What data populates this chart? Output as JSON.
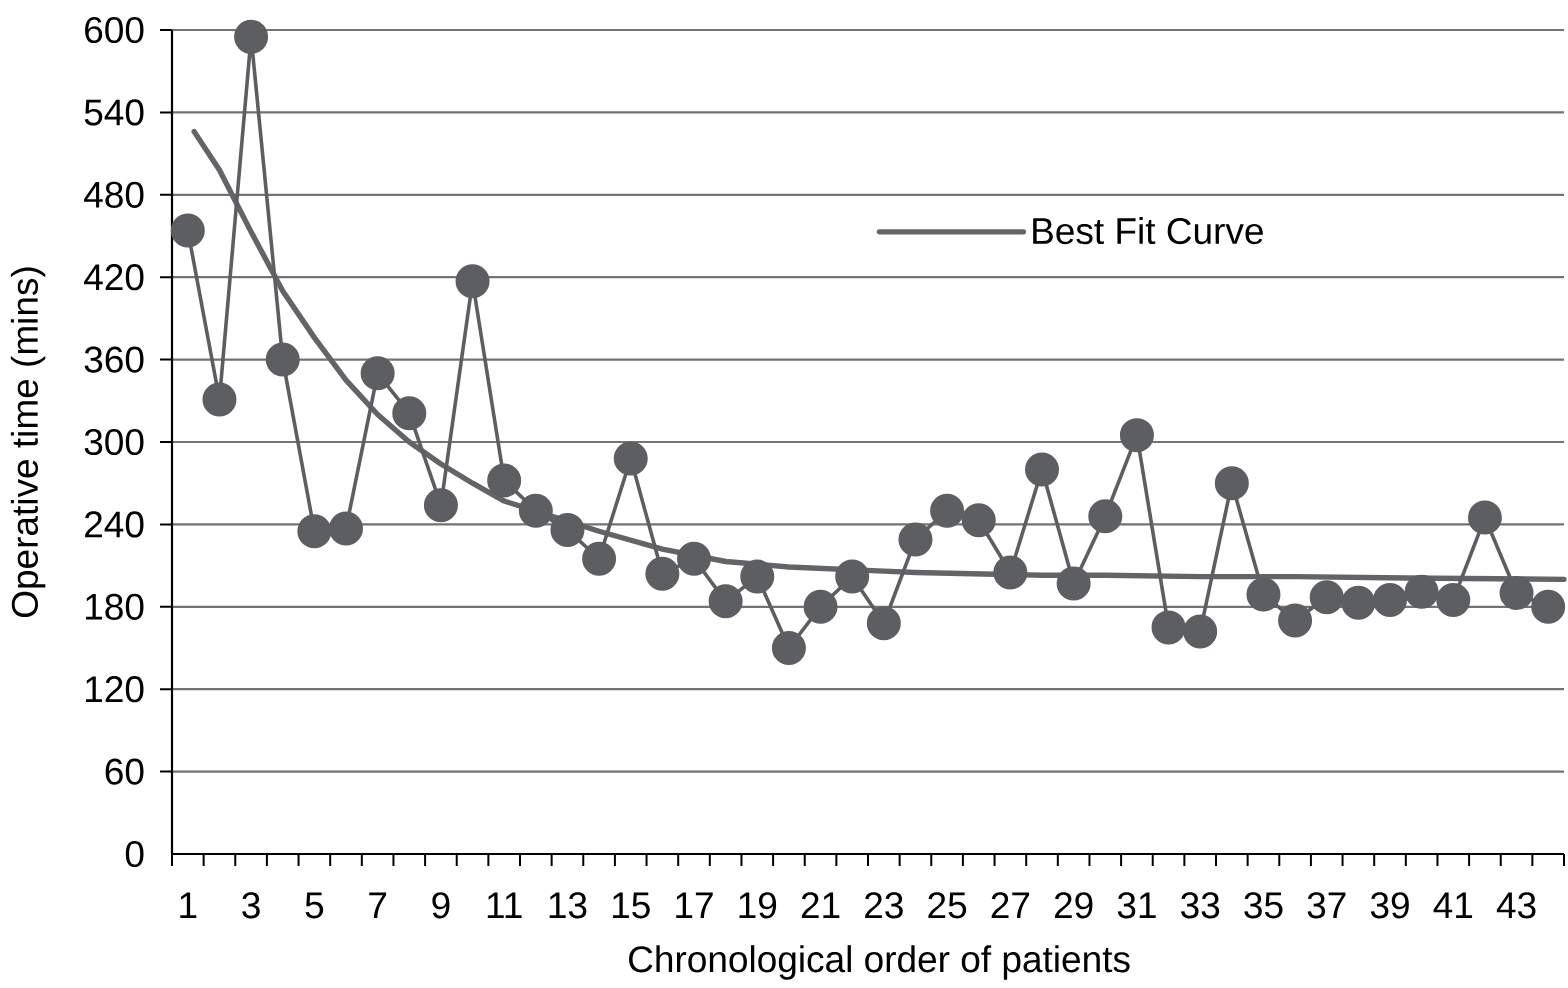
{
  "chart_data": {
    "type": "line",
    "xlabel": "Chronological order of patients",
    "ylabel": "Operative time (mins)",
    "x": [
      1,
      2,
      3,
      4,
      5,
      6,
      7,
      8,
      9,
      10,
      11,
      12,
      13,
      14,
      15,
      16,
      17,
      18,
      19,
      20,
      21,
      22,
      23,
      24,
      25,
      26,
      27,
      28,
      29,
      30,
      31,
      32,
      33,
      34,
      35,
      36,
      37,
      38,
      39,
      40,
      41,
      42,
      43,
      44
    ],
    "xlim": [
      0.5,
      44.5
    ],
    "xticks": [
      {
        "value": 0.5,
        "label": null
      },
      1,
      {
        "value": 1.5,
        "label": null
      },
      {
        "value": 2.5,
        "label": null
      },
      3,
      {
        "value": 3.5,
        "label": null
      },
      {
        "value": 4.5,
        "label": null
      },
      5,
      {
        "value": 5.5,
        "label": null
      },
      {
        "value": 6.5,
        "label": null
      },
      7,
      {
        "value": 7.5,
        "label": null
      },
      {
        "value": 8.5,
        "label": null
      },
      9,
      {
        "value": 9.5,
        "label": null
      },
      {
        "value": 10.5,
        "label": null
      },
      11,
      {
        "value": 11.5,
        "label": null
      },
      {
        "value": 12.5,
        "label": null
      },
      13,
      {
        "value": 13.5,
        "label": null
      },
      {
        "value": 14.5,
        "label": null
      },
      15,
      {
        "value": 15.5,
        "label": null
      },
      {
        "value": 16.5,
        "label": null
      },
      17,
      {
        "value": 17.5,
        "label": null
      },
      {
        "value": 18.5,
        "label": null
      },
      19,
      {
        "value": 19.5,
        "label": null
      },
      {
        "value": 20.5,
        "label": null
      },
      21,
      {
        "value": 21.5,
        "label": null
      },
      {
        "value": 22.5,
        "label": null
      },
      23,
      {
        "value": 23.5,
        "label": null
      },
      {
        "value": 24.5,
        "label": null
      },
      25,
      {
        "value": 25.5,
        "label": null
      },
      {
        "value": 26.5,
        "label": null
      },
      27,
      {
        "value": 27.5,
        "label": null
      },
      {
        "value": 28.5,
        "label": null
      },
      29,
      {
        "value": 29.5,
        "label": null
      },
      {
        "value": 30.5,
        "label": null
      },
      31,
      {
        "value": 31.5,
        "label": null
      },
      {
        "value": 32.5,
        "label": null
      },
      33,
      {
        "value": 33.5,
        "label": null
      },
      {
        "value": 34.5,
        "label": null
      },
      35,
      {
        "value": 35.5,
        "label": null
      },
      {
        "value": 36.5,
        "label": null
      },
      37,
      {
        "value": 37.5,
        "label": null
      },
      {
        "value": 38.5,
        "label": null
      },
      39,
      {
        "value": 39.5,
        "label": null
      },
      {
        "value": 40.5,
        "label": null
      },
      41,
      {
        "value": 41.5,
        "label": null
      },
      {
        "value": 42.5,
        "label": null
      },
      43,
      {
        "value": 43.5,
        "label": null
      },
      {
        "value": 44.5,
        "label": null
      }
    ],
    "ylim": [
      0,
      600
    ],
    "yticks": [
      0,
      60,
      120,
      180,
      240,
      300,
      360,
      420,
      480,
      540,
      600
    ],
    "grid": "y",
    "legend": "top",
    "marker": "circle",
    "line_style": "solid",
    "series": [
      {
        "name": "Best Fit Curve",
        "type": "line",
        "marker": "none",
        "color": "#636467",
        "x": [
          1.2,
          2,
          3,
          4,
          5,
          6,
          7,
          8,
          9,
          10,
          11,
          14,
          16,
          18,
          20,
          23,
          24,
          26,
          28,
          30,
          33,
          36,
          39.5,
          44.5
        ],
        "values": [
          526,
          498,
          453,
          410,
          376,
          345,
          320,
          300,
          284,
          270,
          257,
          235,
          222,
          213,
          209,
          206,
          205,
          204,
          203,
          203,
          202,
          202,
          201,
          200
        ]
      },
      {
        "color": "#5d5e61",
        "values": [
          454,
          331,
          595,
          360,
          235,
          237,
          350,
          321,
          254,
          417,
          272,
          250,
          236,
          215,
          288,
          204,
          215,
          184,
          202,
          150,
          180,
          202,
          168,
          229,
          250,
          243,
          205,
          280,
          197,
          246,
          305,
          165,
          162,
          270,
          189,
          170,
          187,
          183,
          185,
          191,
          185,
          245,
          190,
          180
        ]
      }
    ]
  }
}
